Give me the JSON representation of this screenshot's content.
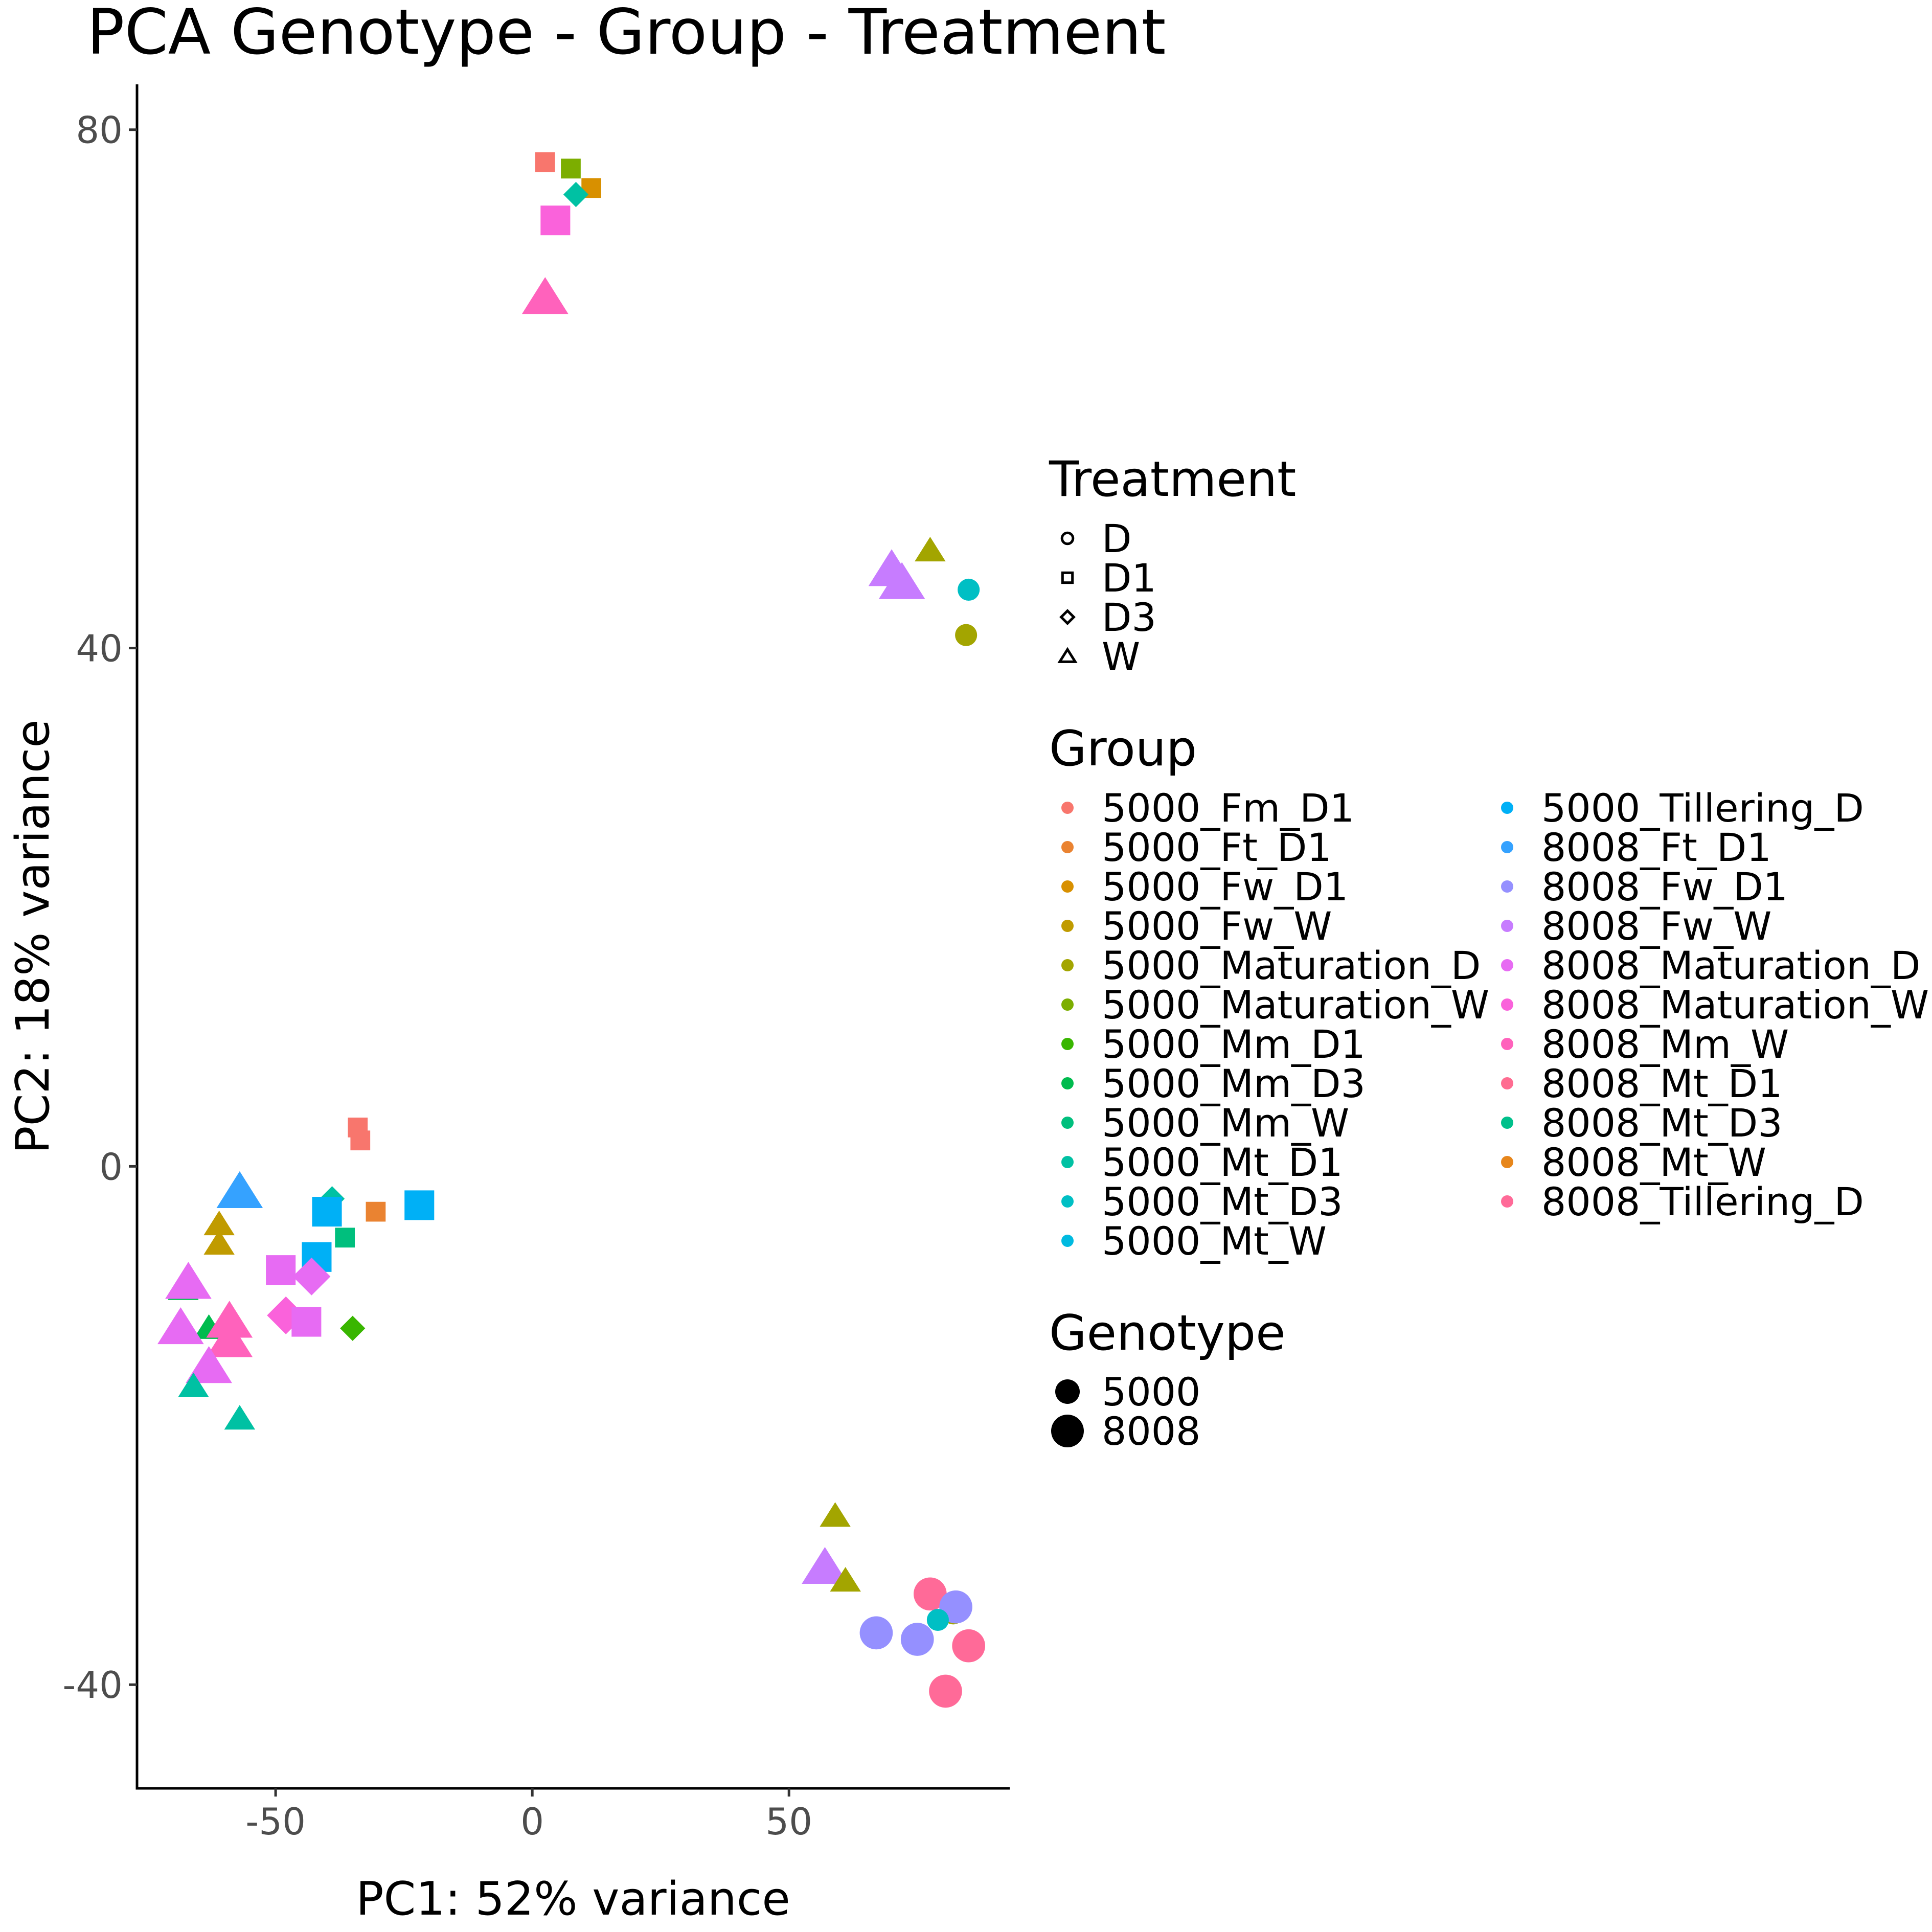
{
  "chart_data": {
    "type": "scatter",
    "title": "PCA Genotype - Group - Treatment",
    "xlabel": "PC1: 52% variance",
    "ylabel": "PC2: 18% variance",
    "xlim": [
      -77,
      93
    ],
    "ylim": [
      -48,
      83.5
    ],
    "xticks": [
      -50,
      0,
      50
    ],
    "yticks": [
      -40,
      0,
      40,
      80
    ],
    "grid": false,
    "legend_position": "right",
    "legends": {
      "treatment": {
        "title": "Treatment",
        "items": [
          {
            "label": "D",
            "shape": "circle"
          },
          {
            "label": "D1",
            "shape": "square"
          },
          {
            "label": "D3",
            "shape": "diamond"
          },
          {
            "label": "W",
            "shape": "triangle"
          }
        ]
      },
      "group": {
        "title": "Group",
        "items": [
          {
            "label": "5000_Fm_D1",
            "color": "#F8766D"
          },
          {
            "label": "5000_Ft_D1",
            "color": "#EA8331"
          },
          {
            "label": "5000_Fw_D1",
            "color": "#D89000"
          },
          {
            "label": "5000_Fw_W",
            "color": "#C09B00"
          },
          {
            "label": "5000_Maturation_D",
            "color": "#A3A500"
          },
          {
            "label": "5000_Maturation_W",
            "color": "#7CAE00"
          },
          {
            "label": "5000_Mm_D1",
            "color": "#39B600"
          },
          {
            "label": "5000_Mm_D3",
            "color": "#00BB4E"
          },
          {
            "label": "5000_Mm_W",
            "color": "#00BF7D"
          },
          {
            "label": "5000_Mt_D1",
            "color": "#00C1A3"
          },
          {
            "label": "5000_Mt_D3",
            "color": "#00BFC4"
          },
          {
            "label": "5000_Mt_W",
            "color": "#00BAE0"
          },
          {
            "label": "5000_Tillering_D",
            "color": "#00B0F6"
          },
          {
            "label": "8008_Ft_D1",
            "color": "#35A2FF"
          },
          {
            "label": "8008_Fw_D1",
            "color": "#9590FF"
          },
          {
            "label": "8008_Fw_W",
            "color": "#C77CFF"
          },
          {
            "label": "8008_Maturation_D",
            "color": "#E76BF3"
          },
          {
            "label": "8008_Maturation_W",
            "color": "#FA62DB"
          },
          {
            "label": "8008_Mm_W",
            "color": "#FF62BC"
          },
          {
            "label": "8008_Mt_D1",
            "color": "#FF6C91"
          },
          {
            "label": "8008_Mt_D3",
            "color": "#00C08B"
          },
          {
            "label": "8008_Mt_W",
            "color": "#E7861B"
          },
          {
            "label": "8008_Tillering_D",
            "color": "#FF6A98"
          }
        ]
      },
      "genotype": {
        "title": "Genotype",
        "items": [
          {
            "label": "5000",
            "size": "small"
          },
          {
            "label": "8008",
            "size": "large"
          }
        ]
      }
    },
    "points": [
      {
        "x": 2.5,
        "y": 77.5,
        "shape": "square",
        "color": "#F8766D",
        "size": "small"
      },
      {
        "x": 7.5,
        "y": 77,
        "shape": "square",
        "color": "#7CAE00",
        "size": "small"
      },
      {
        "x": 11.5,
        "y": 75.5,
        "shape": "square",
        "color": "#D89000",
        "size": "small"
      },
      {
        "x": 8.5,
        "y": 75,
        "shape": "diamond",
        "color": "#00C1A3",
        "size": "small"
      },
      {
        "x": 4.5,
        "y": 73,
        "shape": "square",
        "color": "#FA62DB",
        "size": "large"
      },
      {
        "x": 2.5,
        "y": 67,
        "shape": "triangle",
        "color": "#FF62BC",
        "size": "large"
      },
      {
        "x": 77.5,
        "y": 47.5,
        "shape": "triangle",
        "color": "#A3A500",
        "size": "small"
      },
      {
        "x": 70,
        "y": 46,
        "shape": "triangle",
        "color": "#C77CFF",
        "size": "large"
      },
      {
        "x": 72,
        "y": 45,
        "shape": "triangle",
        "color": "#C77CFF",
        "size": "large"
      },
      {
        "x": 85,
        "y": 44.5,
        "shape": "circle",
        "color": "#00BFC4",
        "size": "small"
      },
      {
        "x": 84.5,
        "y": 41,
        "shape": "circle",
        "color": "#A3A500",
        "size": "small"
      },
      {
        "x": -34,
        "y": 3,
        "shape": "square",
        "color": "#F8766D",
        "size": "small"
      },
      {
        "x": -33.5,
        "y": 2,
        "shape": "square",
        "color": "#F8766D",
        "size": "small"
      },
      {
        "x": -57,
        "y": -2,
        "shape": "triangle",
        "color": "#35A2FF",
        "size": "large"
      },
      {
        "x": -39,
        "y": -2.5,
        "shape": "diamond",
        "color": "#00C1A3",
        "size": "small"
      },
      {
        "x": -22,
        "y": -3,
        "shape": "square",
        "color": "#00B0F6",
        "size": "large"
      },
      {
        "x": -40,
        "y": -3.5,
        "shape": "square",
        "color": "#00B0F6",
        "size": "large"
      },
      {
        "x": -30.5,
        "y": -3.5,
        "shape": "square",
        "color": "#EA8331",
        "size": "small"
      },
      {
        "x": -61,
        "y": -4.5,
        "shape": "triangle",
        "color": "#C09B00",
        "size": "small"
      },
      {
        "x": -36.5,
        "y": -5.5,
        "shape": "square",
        "color": "#00BF7D",
        "size": "small"
      },
      {
        "x": -61,
        "y": -6,
        "shape": "triangle",
        "color": "#C09B00",
        "size": "small"
      },
      {
        "x": -42,
        "y": -7,
        "shape": "square",
        "color": "#00B0F6",
        "size": "large"
      },
      {
        "x": -49,
        "y": -8,
        "shape": "square",
        "color": "#E76BF3",
        "size": "large"
      },
      {
        "x": -43,
        "y": -8.5,
        "shape": "diamond",
        "color": "#E76BF3",
        "size": "large"
      },
      {
        "x": -68,
        "y": -9.5,
        "shape": "triangle",
        "color": "#00BB4E",
        "size": "small"
      },
      {
        "x": -67,
        "y": -9,
        "shape": "triangle",
        "color": "#E76BF3",
        "size": "large"
      },
      {
        "x": -48,
        "y": -11.5,
        "shape": "diamond",
        "color": "#FA62DB",
        "size": "large"
      },
      {
        "x": -44,
        "y": -12,
        "shape": "square",
        "color": "#E76BF3",
        "size": "large"
      },
      {
        "x": -35,
        "y": -12.5,
        "shape": "diamond",
        "color": "#39B600",
        "size": "small"
      },
      {
        "x": -63,
        "y": -12.5,
        "shape": "triangle",
        "color": "#00BB4E",
        "size": "small"
      },
      {
        "x": -59,
        "y": -12,
        "shape": "triangle",
        "color": "#FF62BC",
        "size": "large"
      },
      {
        "x": -68.5,
        "y": -12.5,
        "shape": "triangle",
        "color": "#E76BF3",
        "size": "large"
      },
      {
        "x": -59,
        "y": -13.5,
        "shape": "triangle",
        "color": "#FF62BC",
        "size": "large"
      },
      {
        "x": -63,
        "y": -15.5,
        "shape": "triangle",
        "color": "#E76BF3",
        "size": "large"
      },
      {
        "x": -66,
        "y": -17,
        "shape": "triangle",
        "color": "#00C1A3",
        "size": "small"
      },
      {
        "x": -57,
        "y": -19.5,
        "shape": "triangle",
        "color": "#00C1A3",
        "size": "small"
      },
      {
        "x": 59,
        "y": -27,
        "shape": "triangle",
        "color": "#A3A500",
        "size": "small"
      },
      {
        "x": 57,
        "y": -31,
        "shape": "triangle",
        "color": "#C77CFF",
        "size": "large"
      },
      {
        "x": 61,
        "y": -32,
        "shape": "triangle",
        "color": "#A3A500",
        "size": "small"
      },
      {
        "x": 77.5,
        "y": -33,
        "shape": "circle",
        "color": "#FF6A98",
        "size": "large"
      },
      {
        "x": 82,
        "y": -34.5,
        "shape": "circle",
        "color": "#A3A500",
        "size": "small"
      },
      {
        "x": 82.5,
        "y": -34,
        "shape": "circle",
        "color": "#9590FF",
        "size": "large"
      },
      {
        "x": 79,
        "y": -35,
        "shape": "circle",
        "color": "#00BFC4",
        "size": "small"
      },
      {
        "x": 67,
        "y": -36,
        "shape": "circle",
        "color": "#9590FF",
        "size": "large"
      },
      {
        "x": 75,
        "y": -36.5,
        "shape": "circle",
        "color": "#9590FF",
        "size": "large"
      },
      {
        "x": 85,
        "y": -37,
        "shape": "circle",
        "color": "#FF6A98",
        "size": "large"
      },
      {
        "x": 80.5,
        "y": -40.5,
        "shape": "circle",
        "color": "#FF6A98",
        "size": "large"
      }
    ]
  }
}
